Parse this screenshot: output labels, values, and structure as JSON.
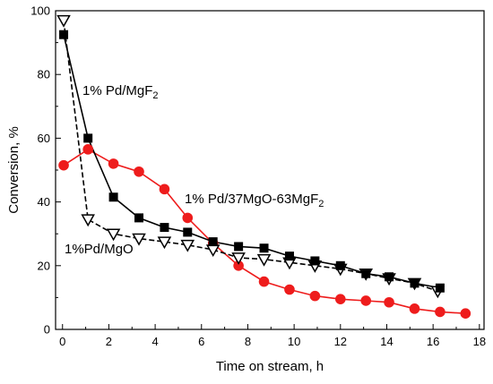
{
  "chart_data": {
    "type": "line",
    "xlabel": "Time on stream, h",
    "ylabel": "Conversion, %",
    "xlim": [
      -0.3,
      18.2
    ],
    "ylim": [
      0,
      100
    ],
    "x_ticks": [
      0,
      2,
      4,
      6,
      8,
      10,
      12,
      14,
      16,
      18
    ],
    "y_ticks": [
      0,
      20,
      40,
      60,
      80,
      100
    ],
    "x_tick_labels": [
      "0",
      "2",
      "4",
      "6",
      "8",
      "10",
      "12",
      "14",
      "16",
      "18"
    ],
    "y_tick_labels": [
      "0",
      "20",
      "40",
      "60",
      "80",
      "100"
    ],
    "grid": false,
    "series": [
      {
        "key": "mgf2",
        "label": "1% Pd/MgF",
        "label_sub": "2",
        "marker": "square",
        "color": "#000000",
        "line_style": "solid",
        "x": [
          0.05,
          1.1,
          2.2,
          3.3,
          4.4,
          5.4,
          6.5,
          7.6,
          8.7,
          9.8,
          10.9,
          12.0,
          13.1,
          14.1,
          15.2,
          16.3
        ],
        "y": [
          92.5,
          60,
          41.5,
          35,
          32,
          30.5,
          27.5,
          26,
          25.5,
          23,
          21.5,
          20,
          17.5,
          16.5,
          14.5,
          13
        ]
      },
      {
        "key": "mgo",
        "label": "1%Pd/MgO",
        "label_sub": "",
        "marker": "triangle-down",
        "color": "#000000",
        "line_style": "dashed",
        "x": [
          0.05,
          1.1,
          2.2,
          3.3,
          4.4,
          5.4,
          6.5,
          7.6,
          8.7,
          9.8,
          10.9,
          12.0,
          13.1,
          14.1,
          15.2,
          16.2
        ],
        "y": [
          97,
          34.5,
          30,
          28.5,
          27.5,
          26.5,
          25,
          22.5,
          22,
          21,
          20,
          19,
          17.5,
          16,
          14.5,
          12
        ]
      },
      {
        "key": "mixed",
        "label": "1% Pd/37MgO-63MgF",
        "label_sub": "2",
        "marker": "circle",
        "color": "#ee1c1c",
        "line_style": "solid",
        "x": [
          0.05,
          1.1,
          2.2,
          3.3,
          4.4,
          5.4,
          6.5,
          7.6,
          8.7,
          9.8,
          10.9,
          12.0,
          13.1,
          14.1,
          15.2,
          16.3,
          17.4
        ],
        "y": [
          51.5,
          56.5,
          52,
          49.5,
          44,
          35,
          27,
          20,
          15,
          12.5,
          10.5,
          9.5,
          9,
          8.5,
          6.5,
          5.5,
          5
        ]
      }
    ]
  }
}
